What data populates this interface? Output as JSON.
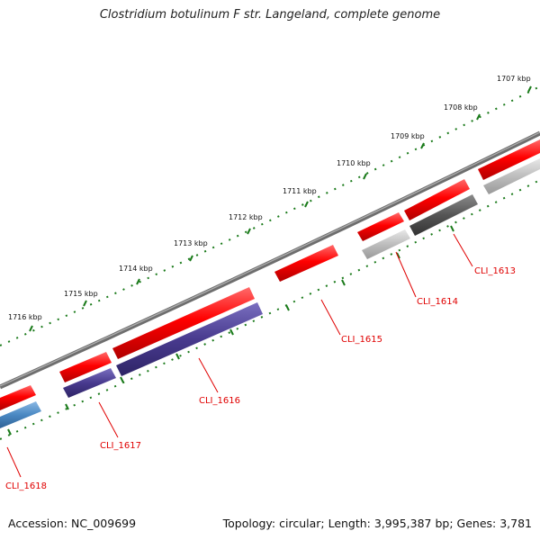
{
  "title": "Clostridium botulinum F str. Langeland, complete genome",
  "accession": "Accession: NC_009699",
  "summary": "Topology: circular; Length: 3,995,387 bp; Genes: 3,781",
  "ticks": [
    "1707 kbp",
    "1708 kbp",
    "1709 kbp",
    "1710 kbp",
    "1711 kbp",
    "1712 kbp",
    "1713 kbp",
    "1714 kbp",
    "1715 kbp",
    "1716 kbp"
  ],
  "genes": [
    "CLI_1613",
    "CLI_1614",
    "CLI_1615",
    "CLI_1616",
    "CLI_1617",
    "CLI_1618"
  ],
  "colors": {
    "backbone": "#808080",
    "forward_cds": "#ff0000",
    "reverse_cds_1616_1617": "#4a3d8f",
    "reverse_cds_1618": "#4a8ac4",
    "reverse_cds_grey_light": "#c0c0c0",
    "reverse_cds_grey_dark": "#555555",
    "tick": "#1a7a1a",
    "gene_label": "#e00000"
  }
}
